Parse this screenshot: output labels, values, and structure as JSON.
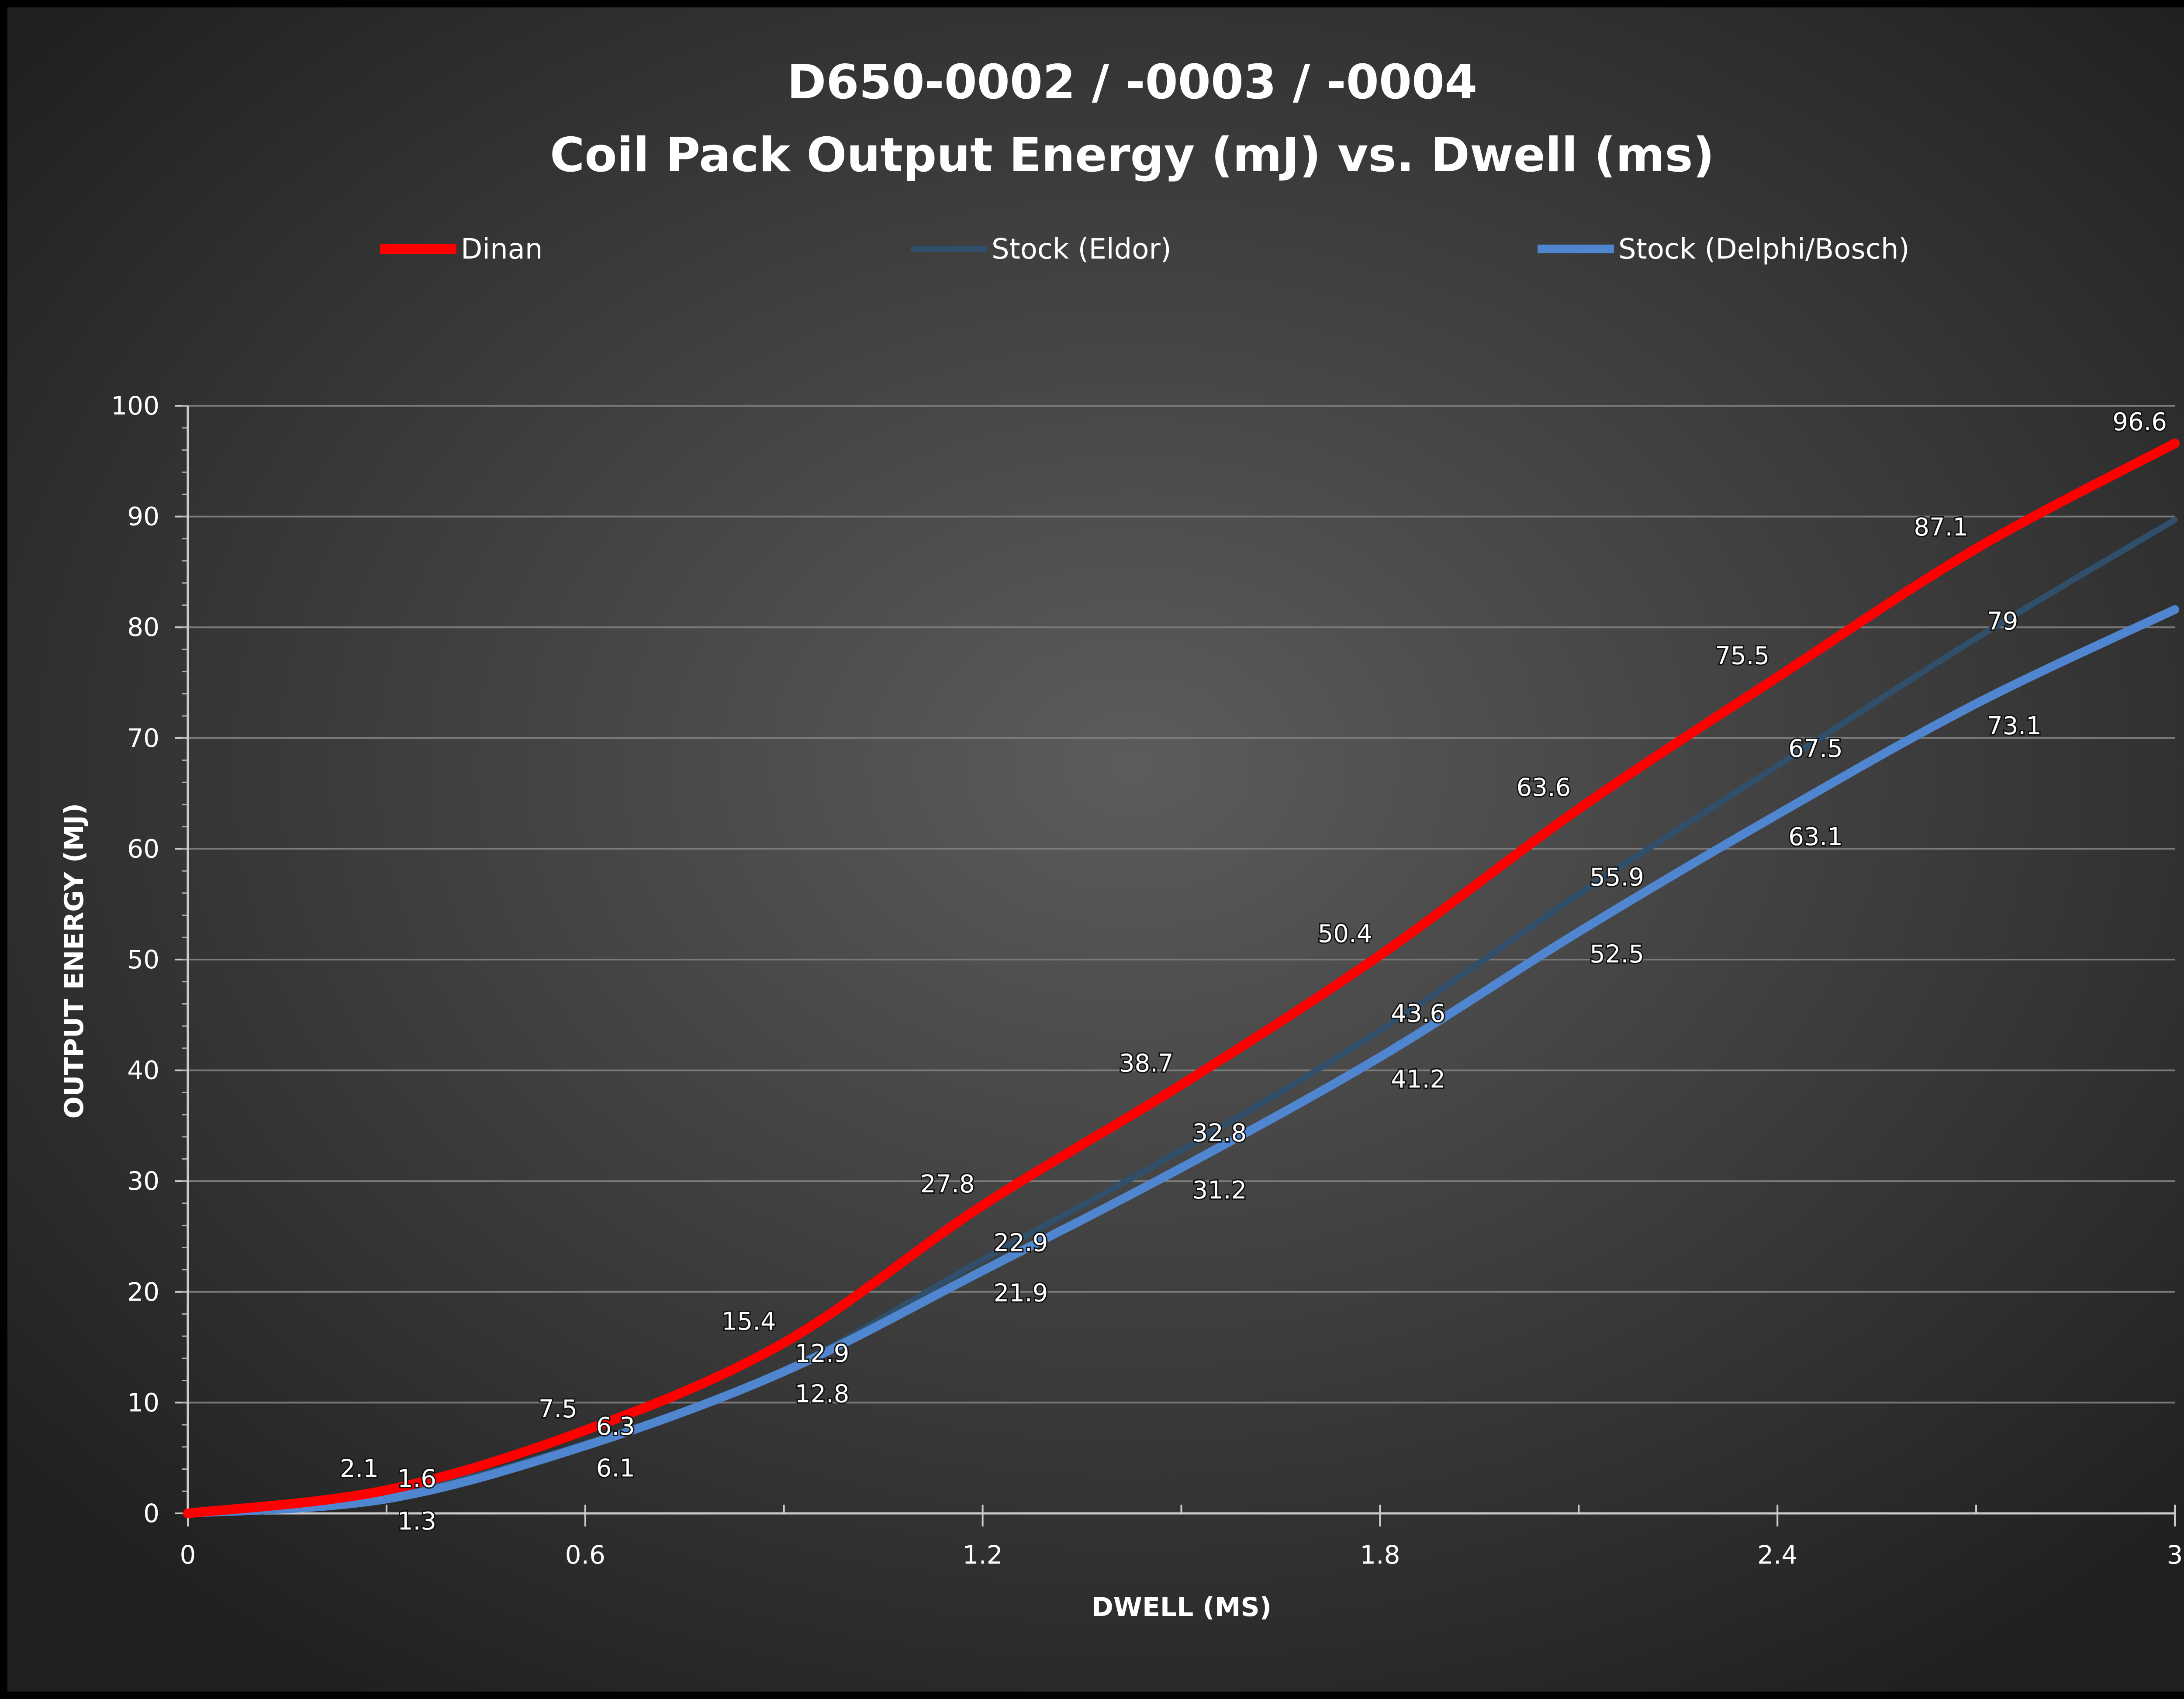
{
  "chart_data": {
    "type": "line",
    "title_line1": "D650-0002 / -0003 / -0004",
    "title_line2": "Coil Pack Output Energy (mJ) vs. Dwell (ms)",
    "xlabel": "DWELL (MS)",
    "ylabel": "OUTPUT ENERGY (MJ)",
    "xlim": [
      0,
      3
    ],
    "ylim": [
      0,
      100
    ],
    "xticks": [
      "0",
      "0.6",
      "1.2",
      "1.8",
      "2.4",
      "3"
    ],
    "yticks": [
      "0",
      "10",
      "20",
      "30",
      "40",
      "50",
      "60",
      "70",
      "80",
      "90",
      "100"
    ],
    "grid": true,
    "legend_position": "top",
    "x": [
      0,
      0.3,
      0.6,
      0.9,
      1.2,
      1.5,
      1.8,
      2.1,
      2.4,
      2.7,
      3.0
    ],
    "series": [
      {
        "name": "Dinan",
        "color": "#ff0000",
        "values": [
          0,
          2.1,
          7.5,
          15.4,
          27.8,
          38.7,
          50.4,
          63.6,
          75.5,
          87.1,
          96.6
        ]
      },
      {
        "name": "Stock (Eldor)",
        "color": "#2f4f6a",
        "values": [
          0,
          1.6,
          6.3,
          12.9,
          22.9,
          32.8,
          43.6,
          55.9,
          67.5,
          79.0,
          89.7
        ]
      },
      {
        "name": "Stock (Delphi/Bosch)",
        "color": "#4f86cf",
        "values": [
          0,
          1.3,
          6.1,
          12.8,
          21.9,
          31.2,
          41.2,
          52.5,
          63.1,
          73.1,
          81.6
        ]
      }
    ]
  }
}
